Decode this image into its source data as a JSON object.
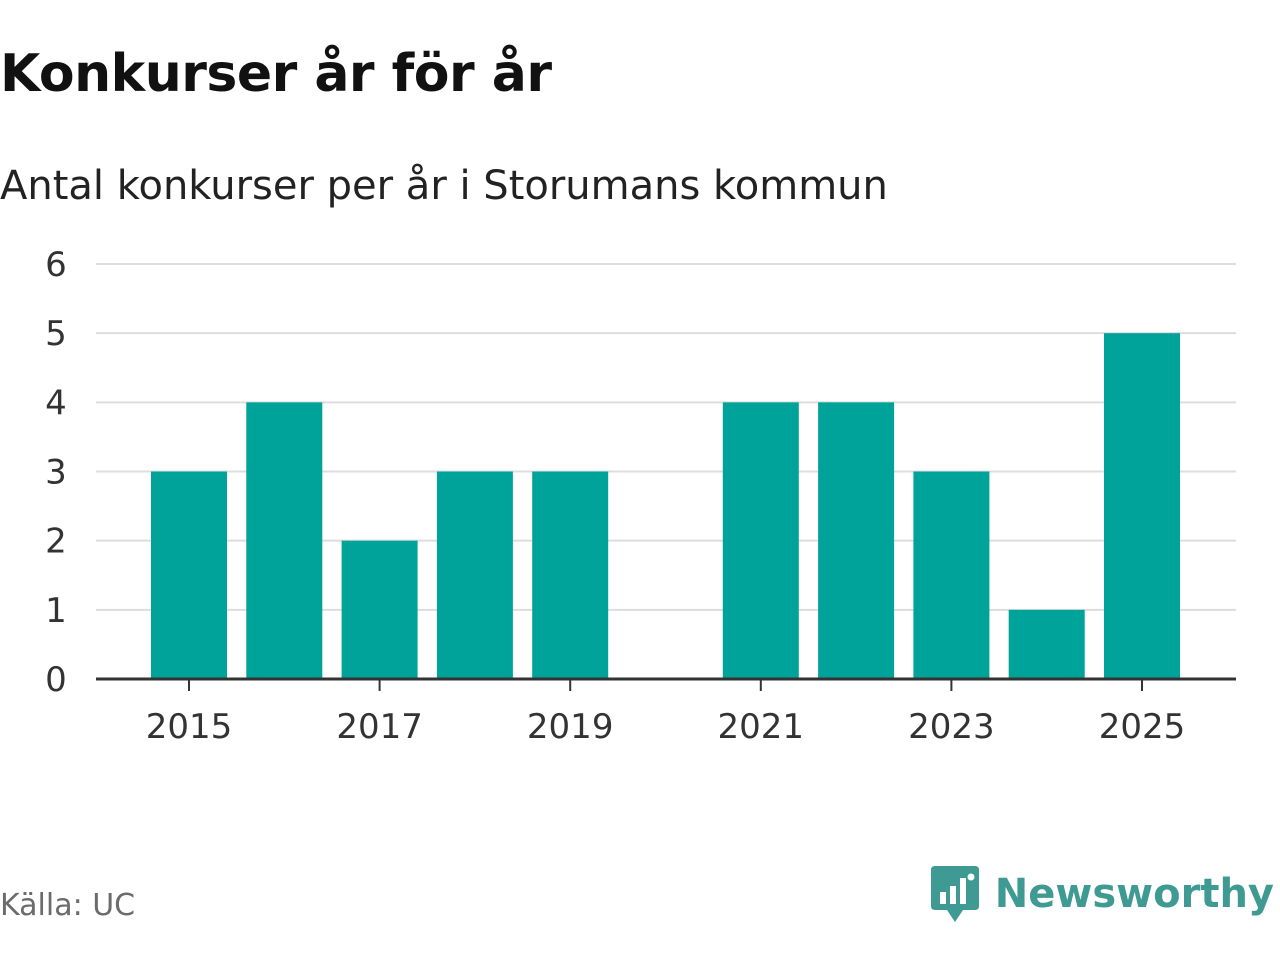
{
  "title": "Konkurser år för år",
  "subtitle": "Antal konkurser per år i Storumans kommun",
  "source": "Källa: UC",
  "brand": {
    "name": "Newsworthy",
    "icon": "newsworthy-logo-icon",
    "color": "#3f9a93"
  },
  "colors": {
    "bar": "#00a39a",
    "grid": "#dddddd",
    "axis": "#333333",
    "text": "#333333"
  },
  "chart_data": {
    "type": "bar",
    "title": "Konkurser år för år",
    "subtitle": "Antal konkurser per år i Storumans kommun",
    "xlabel": "",
    "ylabel": "",
    "categories": [
      "2015",
      "2016",
      "2017",
      "2018",
      "2019",
      "2020",
      "2021",
      "2022",
      "2023",
      "2024",
      "2025"
    ],
    "values": [
      3,
      4,
      2,
      3,
      3,
      0,
      4,
      4,
      3,
      1,
      5
    ],
    "x_tick_labels": [
      "2015",
      "2017",
      "2019",
      "2021",
      "2023",
      "2025"
    ],
    "y_ticks": [
      0,
      1,
      2,
      3,
      4,
      5,
      6
    ],
    "ylim": [
      0,
      6
    ],
    "grid": true,
    "legend": "none"
  }
}
